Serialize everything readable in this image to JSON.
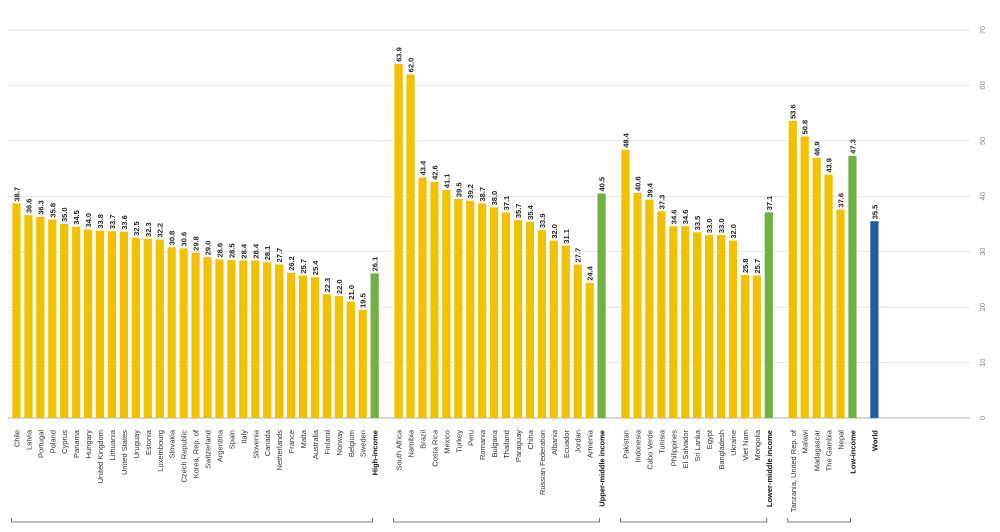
{
  "chart_data": {
    "type": "bar",
    "title": "",
    "xlabel": "",
    "ylabel": "",
    "ylim": [
      0,
      70
    ],
    "yticks": [
      0,
      10,
      20,
      30,
      40,
      50,
      60,
      70
    ],
    "y_axis_side": "right",
    "grid": true,
    "legend": "none",
    "colors": {
      "country": "#F2C200",
      "income_group": "#71B043",
      "world": "#1F5FA8"
    },
    "groups": [
      {
        "name": "High-income",
        "categories": [
          "Chile",
          "Latvia",
          "Portugal",
          "Poland",
          "Cyprus",
          "Panama",
          "Hungary",
          "United Kingdom",
          "Lithuania",
          "United States",
          "Uruguay",
          "Estonia",
          "Luxembourg",
          "Slovakia",
          "Czech Republic",
          "Korea, Rep. of",
          "Switzerland",
          "Argentina",
          "Spain",
          "Italy",
          "Slovenia",
          "Canada",
          "Netherlands",
          "France",
          "Malta",
          "Australia",
          "Finland",
          "Norway",
          "Belgium",
          "Sweden"
        ],
        "values": [
          38.7,
          36.6,
          36.3,
          35.8,
          35.0,
          34.5,
          34.0,
          33.8,
          33.7,
          33.6,
          32.5,
          32.3,
          32.2,
          30.8,
          30.6,
          29.8,
          29.0,
          28.6,
          28.5,
          28.4,
          28.4,
          28.1,
          27.7,
          26.2,
          25.7,
          25.4,
          22.3,
          22.0,
          21.0,
          19.5
        ],
        "labels": [
          "38.7",
          "36.6",
          "36.3",
          "35.8",
          "35.0",
          "34.5",
          "34.0",
          "33.8",
          "33.7",
          "33.6",
          "32.5",
          "32.3",
          "32.2",
          "30.8",
          "30.6",
          "29.8",
          "29.0",
          "28.6",
          "28.5",
          "28.4",
          "28.4",
          "28.1",
          "27.7",
          "26.2",
          "25.7",
          "25.4",
          "22.3",
          "22.0",
          "21.0",
          "19.5"
        ],
        "aggregate": {
          "label": "High-income",
          "value": 26.1,
          "text": "26.1"
        }
      },
      {
        "name": "Upper-middle income",
        "categories": [
          "South Africa",
          "Namibia",
          "Brazil",
          "Costa Rica",
          "Mexico",
          "Turkey",
          "Peru",
          "Romania",
          "Bulgaria",
          "Thailand",
          "Paraguay",
          "China",
          "Russian Federation",
          "Albania",
          "Ecuador",
          "Jordan",
          "Armenia"
        ],
        "values": [
          63.9,
          62.0,
          43.4,
          42.6,
          41.1,
          39.5,
          39.2,
          38.7,
          38.0,
          37.1,
          35.7,
          35.4,
          33.9,
          32.0,
          31.1,
          27.7,
          24.4
        ],
        "labels": [
          "63.9",
          "62.0",
          "43.4",
          "42.6",
          "41.1",
          "39.5",
          "39.2",
          "38.7",
          "38.0",
          "37.1",
          "35.7",
          "35.4",
          "33.9",
          "32.0",
          "31.1",
          "27.7",
          "24.4"
        ],
        "aggregate": {
          "label": "Upper-middle income",
          "value": 40.5,
          "text": "40.5"
        }
      },
      {
        "name": "Lower-middle income",
        "categories": [
          "Pakistan",
          "Indonesia",
          "Cabo Verde",
          "Tunisia",
          "Philippines",
          "El Salvador",
          "Sri Lanka",
          "Egypt",
          "Bangladesh",
          "Ukraine",
          "Viet Nam",
          "Mongolia"
        ],
        "values": [
          48.4,
          40.6,
          39.4,
          37.3,
          34.6,
          34.6,
          33.5,
          33.0,
          33.0,
          32.0,
          25.8,
          25.7
        ],
        "labels": [
          "48.4",
          "40.6",
          "39.4",
          "37.3",
          "34.6",
          "34.6",
          "33.5",
          "33.0",
          "33.0",
          "32.0",
          "25.8",
          "25.7"
        ],
        "aggregate": {
          "label": "Lower-middle income",
          "value": 37.1,
          "text": "37.1"
        }
      },
      {
        "name": "Low-income",
        "categories": [
          "Tanzania, United Rep. of",
          "Malawi",
          "Madagascar",
          "The Gambia",
          "Nepal"
        ],
        "values": [
          53.6,
          50.8,
          46.9,
          43.9,
          37.6
        ],
        "labels": [
          "53.6",
          "50.8",
          "46.9",
          "43.9",
          "37.6"
        ],
        "aggregate": {
          "label": "Low-income",
          "value": 47.3,
          "text": "47.3"
        }
      }
    ],
    "world": {
      "label": "World",
      "value": 35.5,
      "text": "35.5"
    }
  }
}
